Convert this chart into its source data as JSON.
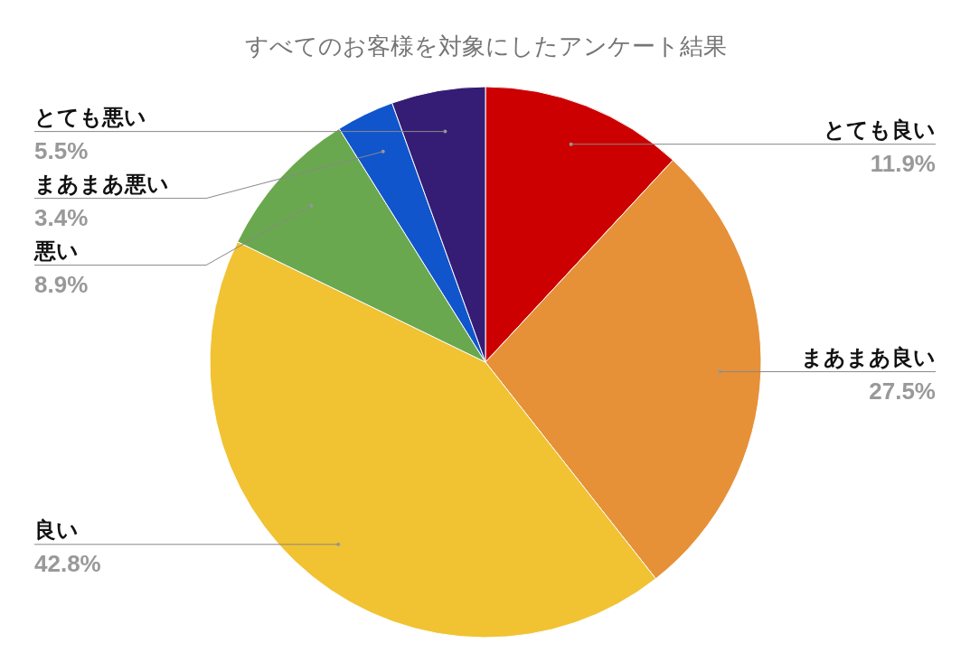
{
  "chart_data": {
    "type": "pie",
    "title": "すべてのお客様を対象にしたアンケート結果",
    "categories": [
      "とても良い",
      "まあまあ良い",
      "良い",
      "悪い",
      "まあまあ悪い",
      "とても悪い"
    ],
    "values": [
      11.9,
      27.5,
      42.8,
      8.9,
      3.4,
      5.5
    ],
    "value_labels": [
      "11.9%",
      "27.5%",
      "42.8%",
      "8.9%",
      "3.4%",
      "5.5%"
    ],
    "colors": [
      "#cc0000",
      "#e69138",
      "#f1c232",
      "#6aa84f",
      "#1155cc",
      "#351c75"
    ]
  }
}
